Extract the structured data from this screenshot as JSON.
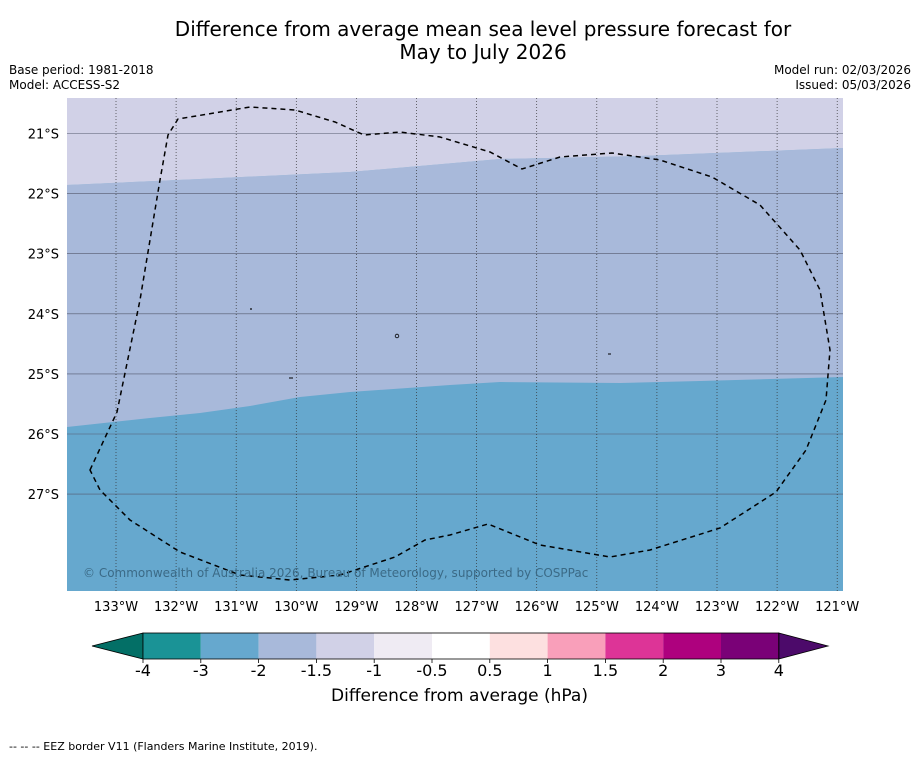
{
  "title": {
    "line1": "Difference from average mean sea level pressure forecast for",
    "line2": "May to July 2026"
  },
  "meta": {
    "base_period": "Base period: 1981-2018",
    "model": "Model: ACCESS-S2",
    "model_run": "Model run: 02/03/2026",
    "issued": "Issued: 05/03/2026"
  },
  "map": {
    "copyright": "© Commonwealth of Australia 2026, Bureau of Meteorology, supported by COSPPac",
    "lat_labels": [
      "21°S",
      "22°S",
      "23°S",
      "24°S",
      "25°S",
      "26°S",
      "27°S"
    ],
    "lon_labels": [
      "133°W",
      "132°W",
      "131°W",
      "130°W",
      "129°W",
      "128°W",
      "127°W",
      "126°W",
      "125°W",
      "124°W",
      "123°W",
      "122°W",
      "121°W"
    ],
    "colors": {
      "band_upper": "#d1d1e7",
      "band_middle": "#a8b9da",
      "band_lower": "#66a8ce",
      "eez_border": "#000000"
    }
  },
  "colorbar": {
    "title": "Difference from average (hPa)",
    "tick_labels": [
      "-4",
      "-3",
      "-2",
      "-1.5",
      "-1",
      "-0.5",
      "0.5",
      "1",
      "1.5",
      "2",
      "3",
      "4"
    ],
    "under_color": "#036f66",
    "over_color": "#4c0a6a",
    "colors": [
      "#1a9396",
      "#66a8ce",
      "#a8b9da",
      "#d1d1e7",
      "#efebf3",
      "#ffffff",
      "#fde0e0",
      "#f99fba",
      "#dd3497",
      "#ae017e",
      "#7a0177"
    ]
  },
  "footnote": "--  --  -- EEZ border V11 (Flanders Marine Institute, 2019)."
}
